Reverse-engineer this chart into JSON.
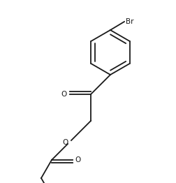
{
  "bg_color": "#ffffff",
  "line_color": "#1a1a1a",
  "line_width": 1.3,
  "font_size": 7.5,
  "figsize": [
    2.52,
    2.62
  ],
  "dpi": 100,
  "label_Br": "Br",
  "label_O1": "O",
  "label_O2": "O",
  "label_O3": "O",
  "xlim": [
    0,
    252
  ],
  "ylim": [
    0,
    262
  ]
}
